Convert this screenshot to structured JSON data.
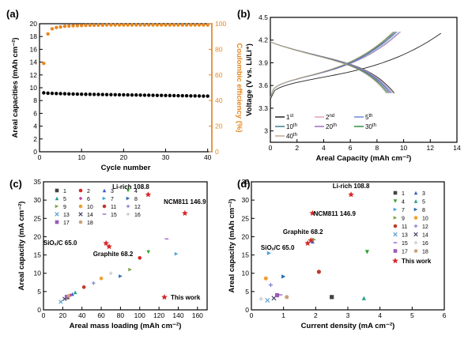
{
  "chart_data": [
    {
      "panel": "(a)",
      "type": "scatter",
      "xlabel": "Cycle number",
      "ylabel": "Areal capacities (mAh cm⁻²)",
      "y2label": "Coulombic efficiency (%)",
      "xlim": [
        0,
        41
      ],
      "ylim": [
        0,
        20
      ],
      "y2lim": [
        0,
        100
      ],
      "xticks": [
        "0",
        "10",
        "20",
        "30",
        "40"
      ],
      "yticks": [
        "0",
        "2",
        "4",
        "6",
        "8",
        "10",
        "12",
        "14",
        "16",
        "18",
        "20"
      ],
      "y2ticks": [
        "0",
        "20",
        "40",
        "60",
        "80",
        "100"
      ],
      "colors": {
        "capacity": "#000000",
        "efficiency": "#e8871e"
      },
      "series": [
        {
          "axis": "left",
          "x": [
            1,
            2,
            3,
            4,
            5,
            6,
            7,
            8,
            9,
            10,
            11,
            12,
            13,
            14,
            15,
            16,
            17,
            18,
            19,
            20,
            21,
            22,
            23,
            24,
            25,
            26,
            27,
            28,
            29,
            30,
            31,
            32,
            33,
            34,
            35,
            36,
            37,
            38,
            39,
            40
          ],
          "y": [
            9.2,
            9.15,
            9.12,
            9.1,
            9.08,
            9.06,
            9.04,
            9.02,
            9.0,
            8.99,
            8.98,
            8.97,
            8.96,
            8.95,
            8.94,
            8.93,
            8.92,
            8.91,
            8.9,
            8.89,
            8.88,
            8.87,
            8.86,
            8.85,
            8.84,
            8.83,
            8.82,
            8.81,
            8.8,
            8.79,
            8.78,
            8.77,
            8.76,
            8.75,
            8.74,
            8.73,
            8.72,
            8.71,
            8.7,
            8.69
          ]
        },
        {
          "axis": "right",
          "x": [
            1,
            2,
            3,
            4,
            5,
            6,
            7,
            8,
            9,
            10,
            11,
            12,
            13,
            14,
            15,
            16,
            17,
            18,
            19,
            20,
            21,
            22,
            23,
            24,
            25,
            26,
            27,
            28,
            29,
            30,
            31,
            32,
            33,
            34,
            35,
            36,
            37,
            38,
            39,
            40
          ],
          "y": [
            69,
            92,
            96,
            97,
            97.5,
            98,
            98.2,
            98.4,
            98.5,
            98.6,
            98.7,
            98.8,
            98.8,
            98.9,
            98.9,
            99,
            99,
            99,
            99,
            99,
            99,
            99,
            99,
            99,
            99,
            99,
            99,
            99,
            99,
            99,
            99,
            99,
            99,
            99,
            99,
            99,
            99,
            99,
            99,
            99
          ]
        }
      ]
    },
    {
      "panel": "(b)",
      "type": "line",
      "xlabel": "Areal Capacity (mAh cm⁻²)",
      "ylabel": "Voltage (V vs. Li/Li⁺)",
      "xlim": [
        0,
        14
      ],
      "ylim": [
        2.85,
        4.5
      ],
      "xticks": [
        "0",
        "2",
        "4",
        "6",
        "8",
        "10",
        "12",
        "14"
      ],
      "yticks": [
        "3",
        "3.3",
        "3.6",
        "3.9",
        "4.2",
        "4.5"
      ],
      "legend": [
        {
          "base": "1",
          "sup": "st",
          "color": "#222222"
        },
        {
          "base": "2",
          "sup": "nd",
          "color": "#e4a0b8"
        },
        {
          "base": "5",
          "sup": "th",
          "color": "#6d88d6"
        },
        {
          "base": "10",
          "sup": "th",
          "color": "#3a7d8c"
        },
        {
          "base": "20",
          "sup": "th",
          "color": "#9c6bc9"
        },
        {
          "base": "30",
          "sup": "th",
          "color": "#2f8f3c"
        },
        {
          "base": "40",
          "sup": "th",
          "color": "#c2a98f"
        }
      ],
      "series": [
        {
          "charge_end": 12.8,
          "discharge_end": 9.3
        },
        {
          "charge_end": 9.8,
          "discharge_end": 9.2
        },
        {
          "charge_end": 9.7,
          "discharge_end": 9.1
        },
        {
          "charge_end": 9.5,
          "discharge_end": 9.0
        },
        {
          "charge_end": 9.4,
          "discharge_end": 8.9
        },
        {
          "charge_end": 9.3,
          "discharge_end": 8.8
        },
        {
          "charge_end": 9.2,
          "discharge_end": 8.7
        }
      ]
    },
    {
      "panel": "(c)",
      "type": "scatter",
      "xlabel": "Areal mass loading (mAh cm⁻²)",
      "ylabel": "Areal capacity (mA cm⁻²)",
      "xlim": [
        0,
        170
      ],
      "ylim": [
        0,
        35
      ],
      "xticks": [
        "0",
        "20",
        "40",
        "60",
        "80",
        "100",
        "120",
        "140",
        "160"
      ],
      "yticks": [
        "0",
        "5",
        "10",
        "15",
        "20",
        "25",
        "30",
        "35"
      ],
      "legend_labels": [
        "1",
        "2",
        "3",
        "4",
        "5",
        "6",
        "7",
        "8",
        "9",
        "10",
        "11",
        "12",
        "13",
        "14",
        "15",
        "16",
        "17",
        "18"
      ],
      "this_work_label": "This work",
      "annotations": [
        {
          "text": "Li-rich 108.8",
          "x": 108.8,
          "y": 31.5
        },
        {
          "text": "NCM811 146.9",
          "x": 146.9,
          "y": 26.4
        },
        {
          "text": "SiOₓ/C 65.0",
          "x": 65.0,
          "y": 18.2
        },
        {
          "text": "Graphite 68.2",
          "x": 68.2,
          "y": 17.3
        }
      ],
      "points": [
        {
          "id": 1,
          "x": 25,
          "y": 3.4
        },
        {
          "id": 2,
          "x": 100,
          "y": 14.2
        },
        {
          "id": 3,
          "x": 30,
          "y": 4.3
        },
        {
          "id": 4,
          "x": 109,
          "y": 15.8
        },
        {
          "id": 5,
          "x": 33,
          "y": 4.8
        },
        {
          "id": 6,
          "x": 28,
          "y": 4.0
        },
        {
          "id": 7,
          "x": 138,
          "y": 15.3
        },
        {
          "id": 8,
          "x": 80,
          "y": 9.2
        },
        {
          "id": 9,
          "x": 90,
          "y": 11.0
        },
        {
          "id": 10,
          "x": 60,
          "y": 8.6
        },
        {
          "id": 11,
          "x": 42,
          "y": 6.2
        },
        {
          "id": 12,
          "x": 52,
          "y": 7.3
        },
        {
          "id": 13,
          "x": 18,
          "y": 2.2
        },
        {
          "id": 14,
          "x": 22,
          "y": 3.0
        },
        {
          "id": 15,
          "x": 128,
          "y": 19.4
        },
        {
          "id": 16,
          "x": 70,
          "y": 10.0
        },
        {
          "id": 17,
          "x": 24,
          "y": 3.6
        },
        {
          "id": 18,
          "x": 26,
          "y": 3.8
        }
      ],
      "this_work": [
        {
          "x": 108.8,
          "y": 31.5
        },
        {
          "x": 146.9,
          "y": 26.4
        },
        {
          "x": 65.0,
          "y": 18.2
        },
        {
          "x": 68.2,
          "y": 17.3
        }
      ]
    },
    {
      "panel": "(d)",
      "type": "scatter",
      "xlabel": "Current density (mA cm⁻²)",
      "ylabel": "Areal capacity (mAh cm⁻²)",
      "xlim": [
        0,
        6
      ],
      "ylim": [
        0,
        35
      ],
      "xticks": [
        "0",
        "1",
        "2",
        "3",
        "4",
        "5",
        "6"
      ],
      "yticks": [
        "0",
        "5",
        "10",
        "15",
        "20",
        "25",
        "30",
        "35"
      ],
      "legend_labels": [
        "1",
        "3",
        "4",
        "5",
        "7",
        "8",
        "9",
        "10",
        "11",
        "12",
        "13",
        "14",
        "15",
        "16",
        "17",
        "18"
      ],
      "this_work_label": "This work",
      "annotations": [
        {
          "text": "Li-rich 108.8",
          "x": 3.1,
          "y": 31.5
        },
        {
          "text": "NCM811 146.9",
          "x": 1.9,
          "y": 26.4
        },
        {
          "text": "Graphite 68.2",
          "x": 1.85,
          "y": 19.0
        },
        {
          "text": "SiOₓ/C 65.0",
          "x": 1.75,
          "y": 18.2
        }
      ],
      "points": [
        {
          "id": 1,
          "x": 2.5,
          "y": 3.5
        },
        {
          "id": 3,
          "x": 1.9,
          "y": 18.7
        },
        {
          "id": 4,
          "x": 3.6,
          "y": 15.8
        },
        {
          "id": 5,
          "x": 3.5,
          "y": 3.2
        },
        {
          "id": 7,
          "x": 0.55,
          "y": 15.5
        },
        {
          "id": 8,
          "x": 1.0,
          "y": 9.1
        },
        {
          "id": 9,
          "x": 1.95,
          "y": 19.2
        },
        {
          "id": 10,
          "x": 0.45,
          "y": 8.6
        },
        {
          "id": 11,
          "x": 2.1,
          "y": 10.4
        },
        {
          "id": 12,
          "x": 0.6,
          "y": 6.8
        },
        {
          "id": 13,
          "x": 0.5,
          "y": 2.6
        },
        {
          "id": 14,
          "x": 0.7,
          "y": 3.2
        },
        {
          "id": 15,
          "x": 0.9,
          "y": 4.1
        },
        {
          "id": 16,
          "x": 0.3,
          "y": 3.0
        },
        {
          "id": 17,
          "x": 0.8,
          "y": 4.0
        },
        {
          "id": 18,
          "x": 1.1,
          "y": 3.5
        }
      ],
      "this_work": [
        {
          "x": 3.1,
          "y": 31.5
        },
        {
          "x": 1.9,
          "y": 26.4
        },
        {
          "x": 1.85,
          "y": 19.0
        },
        {
          "x": 1.75,
          "y": 18.2
        }
      ]
    }
  ]
}
